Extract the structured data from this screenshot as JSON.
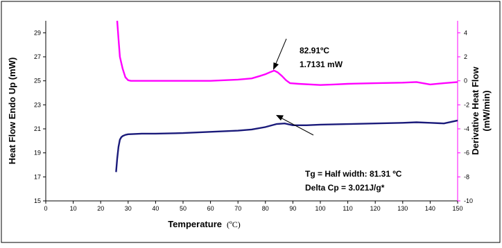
{
  "chart_data": {
    "type": "line",
    "xlabel": "Temperature",
    "xlabel_unit": "(ºC)",
    "ylabel": "Heat Flow Endo Up (mW)",
    "y2label_line1": "Derivative Heat Flow",
    "y2label_line2": "(mW/min)",
    "xlim": [
      0,
      150
    ],
    "ylim": [
      15,
      30
    ],
    "y2lim": [
      -10,
      5
    ],
    "x_ticks": [
      "0",
      "10",
      "20",
      "30",
      "40",
      "50",
      "60",
      "70",
      "80",
      "90",
      "100",
      "110",
      "120",
      "130",
      "140",
      "150"
    ],
    "y_ticks": [
      "29",
      "27",
      "25",
      "23",
      "21",
      "19",
      "17",
      "15"
    ],
    "y2_ticks": [
      "4",
      "2",
      "0",
      "-2",
      "-4",
      "-6",
      "-8",
      "-10"
    ],
    "grid": false,
    "series": [
      {
        "axis": "left",
        "color": "#1a1a7a",
        "x": [
          25.6,
          26.0,
          26.5,
          27.0,
          27.5,
          28.0,
          29.0,
          30.0,
          35.0,
          40.0,
          50.0,
          60.0,
          70.0,
          75.0,
          80.0,
          84.0,
          87.0,
          90.0,
          95.0,
          100.0,
          110.0,
          120.0,
          130.0,
          135.0,
          140.0,
          145.0,
          150.0
        ],
        "y": [
          17.4,
          18.5,
          19.5,
          20.1,
          20.3,
          20.4,
          20.5,
          20.55,
          20.6,
          20.6,
          20.65,
          20.75,
          20.85,
          20.95,
          21.15,
          21.4,
          21.45,
          21.3,
          21.3,
          21.35,
          21.4,
          21.45,
          21.5,
          21.55,
          21.5,
          21.45,
          21.7
        ]
      },
      {
        "axis": "right",
        "color": "#ff00ff",
        "x": [
          26.0,
          26.5,
          27.0,
          28.0,
          29.0,
          30.0,
          31.0,
          35.0,
          40.0,
          50.0,
          60.0,
          65.0,
          70.0,
          75.0,
          78.0,
          80.0,
          82.0,
          83.2,
          84.5,
          86.0,
          87.5,
          89.0,
          92.0,
          100.0,
          105.0,
          110.0,
          120.0,
          130.0,
          135.0,
          140.0,
          145.0,
          150.0
        ],
        "y": [
          5.0,
          3.5,
          2.0,
          1.0,
          0.3,
          0.05,
          0.0,
          0.0,
          0.0,
          0.0,
          0.0,
          0.05,
          0.1,
          0.2,
          0.4,
          0.55,
          0.75,
          0.85,
          0.7,
          0.4,
          0.05,
          -0.2,
          -0.25,
          -0.35,
          -0.3,
          -0.25,
          -0.2,
          -0.15,
          -0.1,
          -0.3,
          -0.2,
          -0.1
        ]
      }
    ],
    "annotations": [
      {
        "line1": "82.91ºC",
        "line2": "1.7131 mW"
      },
      {
        "line1": "Tg = Half width: 81.31 ºC",
        "line2": "Delta Cp = 3.021J/g*"
      }
    ]
  }
}
